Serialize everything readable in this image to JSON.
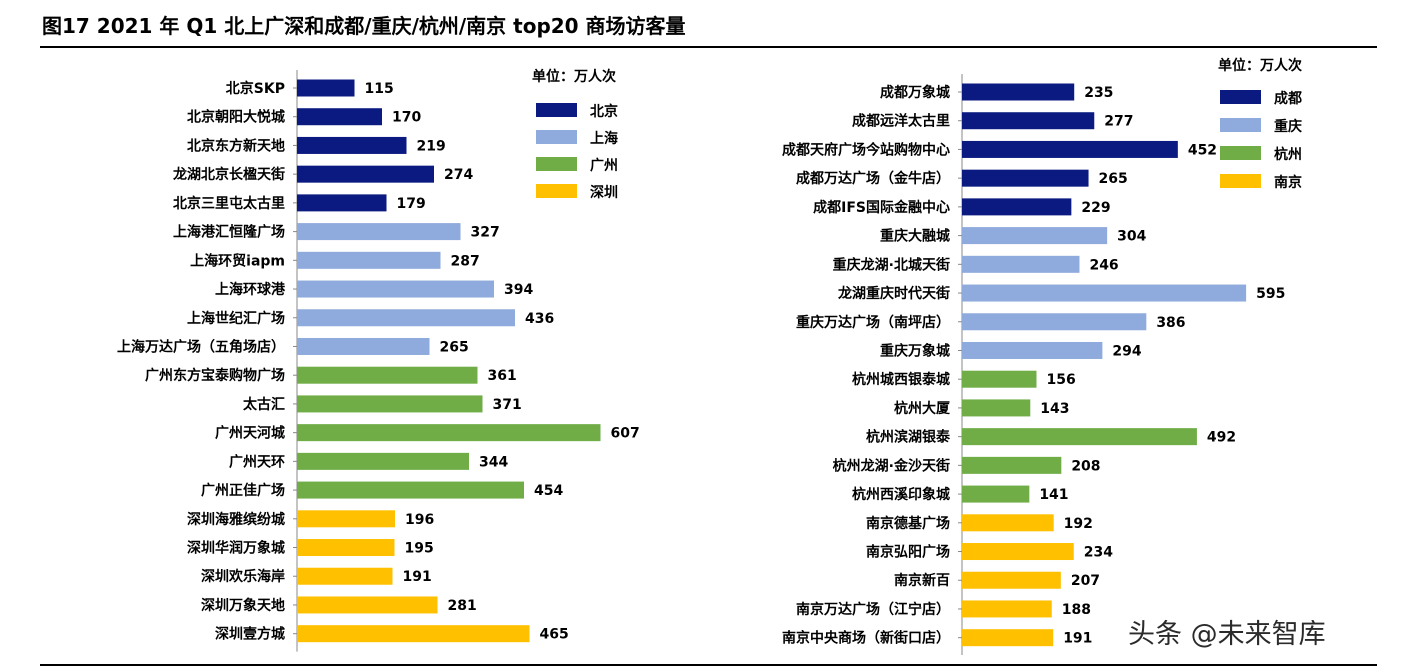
{
  "title": "图17 2021 年 Q1 北上广深和成都/重庆/杭州/南京 top20 商场访客量",
  "watermark": "头条 @未来智库",
  "colors": {
    "series_1": "#0a1a80",
    "series_2": "#8faadc",
    "series_3": "#70ad47",
    "series_4": "#ffc000"
  },
  "chart_data": [
    {
      "type": "bar",
      "orientation": "horizontal",
      "unit_label": "单位：万人次",
      "legend": [
        "北京",
        "上海",
        "广州",
        "深圳"
      ],
      "xlim": [
        0,
        620
      ],
      "categories": [
        "北京SKP",
        "北京朝阳大悦城",
        "北京东方新天地",
        "龙湖北京长楹天街",
        "北京三里屯太古里",
        "上海港汇恒隆广场",
        "上海环贸iapm",
        "上海环球港",
        "上海世纪汇广场",
        "上海万达广场（五角场店）",
        "广州东方宝泰购物广场",
        "太古汇",
        "广州天河城",
        "广州天环",
        "广州正佳广场",
        "深圳海雅缤纷城",
        "深圳华润万象城",
        "深圳欢乐海岸",
        "深圳万象天地",
        "深圳壹方城"
      ],
      "values": [
        115,
        170,
        219,
        274,
        179,
        327,
        287,
        394,
        436,
        265,
        361,
        371,
        607,
        344,
        454,
        196,
        195,
        191,
        281,
        465
      ],
      "groups": [
        0,
        0,
        0,
        0,
        0,
        1,
        1,
        1,
        1,
        1,
        2,
        2,
        2,
        2,
        2,
        3,
        3,
        3,
        3,
        3
      ]
    },
    {
      "type": "bar",
      "orientation": "horizontal",
      "unit_label": "单位：万人次",
      "legend": [
        "成都",
        "重庆",
        "杭州",
        "南京"
      ],
      "xlim": [
        0,
        620
      ],
      "categories": [
        "成都万象城",
        "成都远洋太古里",
        "成都天府广场今站购物中心",
        "成都万达广场（金牛店）",
        "成都IFS国际金融中心",
        "重庆大融城",
        "重庆龙湖·北城天街",
        "龙湖重庆时代天街",
        "重庆万达广场（南坪店）",
        "重庆万象城",
        "杭州城西银泰城",
        "杭州大厦",
        "杭州滨湖银泰",
        "杭州龙湖·金沙天街",
        "杭州西溪印象城",
        "南京德基广场",
        "南京弘阳广场",
        "南京新百",
        "南京万达广场（江宁店）",
        "南京中央商场（新街口店）"
      ],
      "values": [
        235,
        277,
        452,
        265,
        229,
        304,
        246,
        595,
        386,
        294,
        156,
        143,
        492,
        208,
        141,
        192,
        234,
        207,
        188,
        191
      ],
      "groups": [
        0,
        0,
        0,
        0,
        0,
        1,
        1,
        1,
        1,
        1,
        2,
        2,
        2,
        2,
        2,
        3,
        3,
        3,
        3,
        3
      ]
    }
  ]
}
